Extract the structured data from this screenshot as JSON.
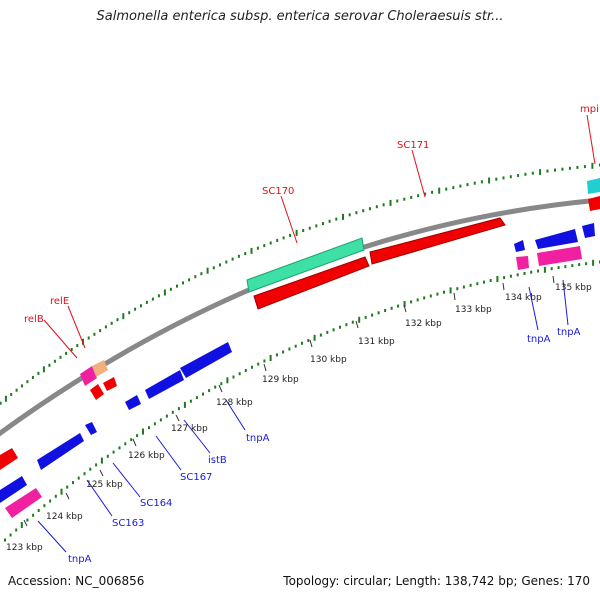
{
  "title": "Salmonella enterica subsp. enterica serovar Choleraesuis str...",
  "footer": {
    "accession": "Accession: NC_006856",
    "summary": "Topology: circular; Length: 138,742 bp; Genes: 170"
  },
  "colors": {
    "backbone": "#8c8c8c",
    "gc_dots": "#1f7a1f",
    "red_label": "#e0101a",
    "blue_label": "#1a1adc",
    "feature_red": "#f00000",
    "feature_blue": "#1010e0",
    "feature_teal": "#30e0a0",
    "feature_cyan": "#20d0d0",
    "feature_pink": "#f020a0",
    "feature_peach": "#f0b080"
  },
  "ticks": [
    "123 kbp",
    "124 kbp",
    "125 kbp",
    "126 kbp",
    "127 kbp",
    "128 kbp",
    "129 kbp",
    "130 kbp",
    "131 kbp",
    "132 kbp",
    "133 kbp",
    "134 kbp",
    "135 kbp"
  ],
  "outer_labels": [
    "mpi",
    "SC171",
    "SC170",
    "relE",
    "relB"
  ],
  "inner_labels": [
    "tnpA",
    "tnpA",
    "tnpA",
    "istB",
    "SC167",
    "SC164",
    "SC163",
    "tnpA"
  ]
}
